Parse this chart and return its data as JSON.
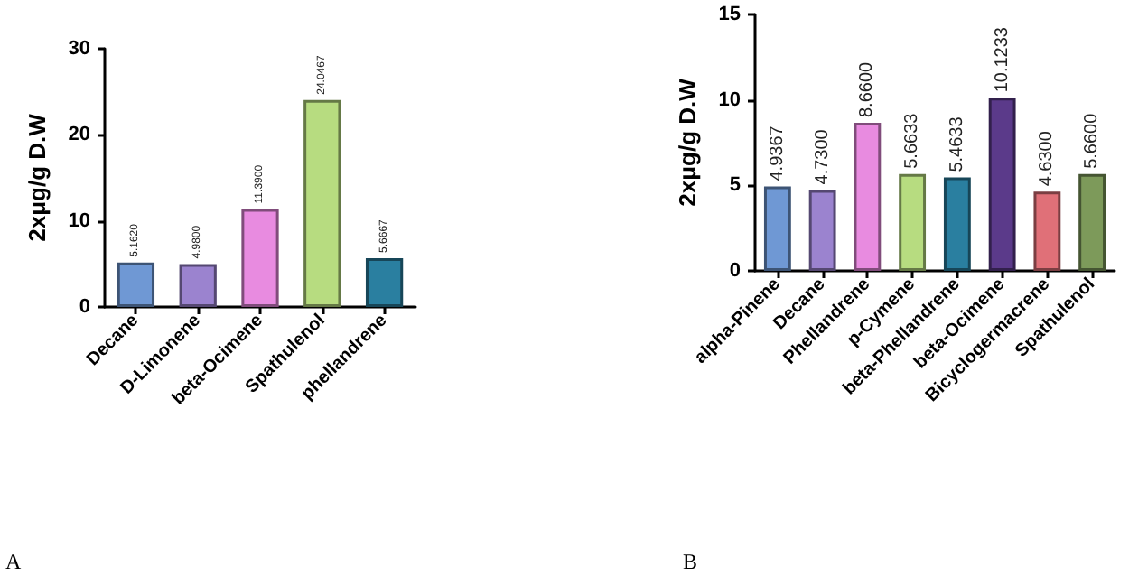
{
  "chart_data": [
    {
      "type": "bar",
      "categories": [
        "Decane",
        "D-Limonene",
        "beta-Ocimene",
        "Spathulenol",
        "phellandrene"
      ],
      "values": [
        5.162,
        4.98,
        11.39,
        24.0467,
        5.6667
      ],
      "value_labels": [
        "5.1620",
        "4.9800",
        "11.3900",
        "24.0467",
        "5.6667"
      ],
      "colors": [
        "#6f98d4",
        "#9b83cf",
        "#e88be0",
        "#b7dc80",
        "#2a7fa0"
      ],
      "ylabel": "2xμg/g D.W",
      "ylim": [
        0,
        30
      ],
      "yticks": [
        0,
        10,
        20,
        30
      ],
      "grid": false,
      "annotations": [
        "A"
      ]
    },
    {
      "type": "bar",
      "categories": [
        "alpha-Pinene",
        "Decane",
        "Phellandrene",
        "p-Cymene",
        "beta-Phellandrene",
        "beta-Ocimene",
        "Bicyclogermacrene",
        "Spathulenol"
      ],
      "values": [
        4.9367,
        4.73,
        8.66,
        5.6633,
        5.4633,
        10.1233,
        4.63,
        5.66
      ],
      "value_labels": [
        "4.9367",
        "4.7300",
        "8.6600",
        "5.6633",
        "5.4633",
        "10.1233",
        "4.6300",
        "5.6600"
      ],
      "colors": [
        "#6f98d4",
        "#9b83cf",
        "#e88be0",
        "#b7dc80",
        "#2a7fa0",
        "#5b3a8a",
        "#e07078",
        "#7d9a5a"
      ],
      "ylabel": "2xμg/g D.W",
      "ylim": [
        0,
        15
      ],
      "yticks": [
        0,
        5,
        10,
        15
      ],
      "grid": false,
      "annotations": [
        "B"
      ]
    }
  ]
}
